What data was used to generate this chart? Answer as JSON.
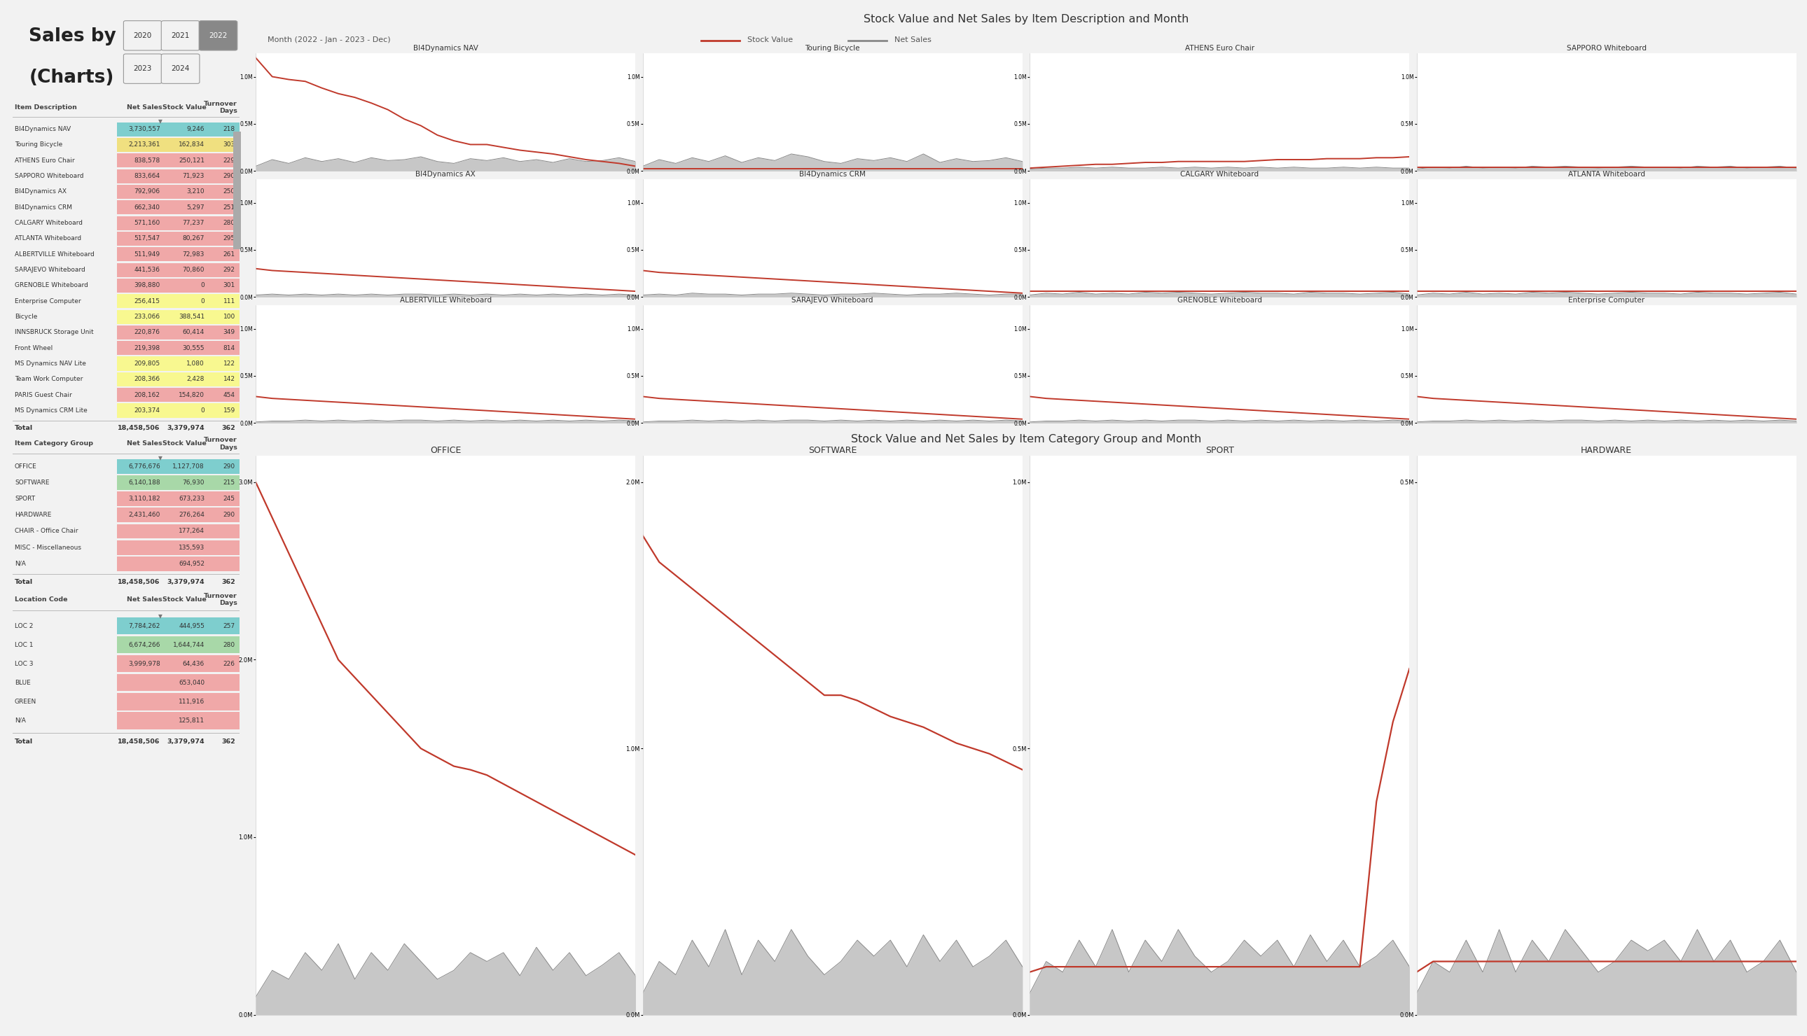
{
  "title_line1": "Sales by Item",
  "title_line2": "(Charts)",
  "year_buttons_row1": [
    "2020",
    "2021",
    "2022"
  ],
  "year_buttons_row2": [
    "2023",
    "2024"
  ],
  "selected_year": "2022",
  "chart_title_top": "Stock Value and Net Sales by Item Description and Month",
  "chart_title_bottom": "Stock Value and Net Sales by Item Category Group and Month",
  "legend_label": "Month (2022 - Jan - 2023 - Dec)",
  "legend_stock": "Stock Value",
  "legend_net": "Net Sales",
  "table1_header": [
    "Item Description",
    "Net Sales",
    "Stock Value",
    "Turnover\nDays"
  ],
  "table1_rows": [
    [
      "BI4Dynamics NAV",
      "3,730,557",
      "9,246",
      "218",
      "teal"
    ],
    [
      "Touring Bicycle",
      "2,213,361",
      "162,834",
      "303",
      "yellow"
    ],
    [
      "ATHENS Euro Chair",
      "838,578",
      "250,121",
      "229",
      "salmon"
    ],
    [
      "SAPPORO Whiteboard",
      "833,664",
      "71,923",
      "290",
      "salmon"
    ],
    [
      "BI4Dynamics AX",
      "792,906",
      "3,210",
      "250",
      "salmon"
    ],
    [
      "BI4Dynamics CRM",
      "662,340",
      "5,297",
      "251",
      "salmon"
    ],
    [
      "CALGARY Whiteboard",
      "571,160",
      "77,237",
      "280",
      "salmon"
    ],
    [
      "ATLANTA Whiteboard",
      "517,547",
      "80,267",
      "295",
      "salmon"
    ],
    [
      "ALBERTVILLE Whiteboard",
      "511,949",
      "72,983",
      "261",
      "salmon"
    ],
    [
      "SARAJEVO Whiteboard",
      "441,536",
      "70,860",
      "292",
      "salmon"
    ],
    [
      "GRENOBLE Whiteboard",
      "398,880",
      "0",
      "301",
      "salmon"
    ],
    [
      "Enterprise Computer",
      "256,415",
      "0",
      "111",
      "lightyellow"
    ],
    [
      "Bicycle",
      "233,066",
      "388,541",
      "100",
      "lightyellow"
    ],
    [
      "INNSBRUCK Storage Unit",
      "220,876",
      "60,414",
      "349",
      "salmon"
    ],
    [
      "Front Wheel",
      "219,398",
      "30,555",
      "814",
      "salmon"
    ],
    [
      "MS Dynamics NAV Lite",
      "209,805",
      "1,080",
      "122",
      "lightyellow"
    ],
    [
      "Team Work Computer",
      "208,366",
      "2,428",
      "142",
      "lightyellow"
    ],
    [
      "PARIS Guest Chair",
      "208,162",
      "154,820",
      "454",
      "salmon"
    ],
    [
      "MS Dynamics CRM Lite",
      "203,374",
      "0",
      "159",
      "lightyellow"
    ]
  ],
  "table1_total": [
    "Total",
    "18,458,506",
    "3,379,974",
    "362"
  ],
  "table2_header": [
    "Item Category Group",
    "Net Sales",
    "Stock Value",
    "Turnover\nDays"
  ],
  "table2_rows": [
    [
      "OFFICE",
      "6,776,676",
      "1,127,708",
      "290",
      "teal"
    ],
    [
      "SOFTWARE",
      "6,140,188",
      "76,930",
      "215",
      "lightgreen"
    ],
    [
      "SPORT",
      "3,110,182",
      "673,233",
      "245",
      "salmon"
    ],
    [
      "HARDWARE",
      "2,431,460",
      "276,264",
      "290",
      "salmon"
    ],
    [
      "CHAIR - Office Chair",
      "",
      "177,264",
      "",
      "salmon"
    ],
    [
      "MISC - Miscellaneous",
      "",
      "135,593",
      "",
      "salmon"
    ],
    [
      "N/A",
      "",
      "694,952",
      "",
      "salmon"
    ]
  ],
  "table2_total": [
    "Total",
    "18,458,506",
    "3,379,974",
    "362"
  ],
  "table3_header": [
    "Location Code",
    "Net Sales",
    "Stock Value",
    "Turnover\nDays"
  ],
  "table3_rows": [
    [
      "LOC 2",
      "7,784,262",
      "444,955",
      "257",
      "teal"
    ],
    [
      "LOC 1",
      "6,674,266",
      "1,644,744",
      "280",
      "lightgreen"
    ],
    [
      "LOC 3",
      "3,999,978",
      "64,436",
      "226",
      "salmon"
    ],
    [
      "BLUE",
      "",
      "653,040",
      "",
      "salmon"
    ],
    [
      "GREEN",
      "",
      "111,916",
      "",
      "salmon"
    ],
    [
      "N/A",
      "",
      "125,811",
      "",
      "salmon"
    ]
  ],
  "table3_total": [
    "Total",
    "18,458,506",
    "3,379,974",
    "362"
  ],
  "item_charts": [
    {
      "title": "BI4Dynamics NAV",
      "ymax": 1.25,
      "stock_vals": [
        1.2,
        1.0,
        0.97,
        0.95,
        0.88,
        0.82,
        0.78,
        0.72,
        0.65,
        0.55,
        0.48,
        0.38,
        0.32,
        0.28,
        0.28,
        0.25,
        0.22,
        0.2,
        0.18,
        0.15,
        0.12,
        0.1,
        0.08,
        0.05
      ],
      "net_vals": [
        0.05,
        0.12,
        0.08,
        0.14,
        0.1,
        0.13,
        0.09,
        0.14,
        0.11,
        0.12,
        0.15,
        0.1,
        0.08,
        0.13,
        0.11,
        0.14,
        0.1,
        0.12,
        0.09,
        0.13,
        0.1,
        0.11,
        0.14,
        0.1
      ],
      "yticks": [
        0.0,
        0.5,
        1.0
      ],
      "ylabels": [
        "0.0M",
        "0.5M",
        "1.0M"
      ]
    },
    {
      "title": "Touring Bicycle",
      "ymax": 1.25,
      "stock_vals": [
        0.02,
        0.02,
        0.02,
        0.02,
        0.02,
        0.02,
        0.02,
        0.02,
        0.02,
        0.02,
        0.02,
        0.02,
        0.02,
        0.02,
        0.02,
        0.02,
        0.02,
        0.02,
        0.02,
        0.02,
        0.02,
        0.02,
        0.02,
        0.02
      ],
      "net_vals": [
        0.05,
        0.12,
        0.08,
        0.14,
        0.1,
        0.16,
        0.09,
        0.14,
        0.11,
        0.18,
        0.15,
        0.1,
        0.08,
        0.13,
        0.11,
        0.14,
        0.1,
        0.18,
        0.09,
        0.13,
        0.1,
        0.11,
        0.14,
        0.1
      ],
      "yticks": [
        0.0,
        0.5,
        1.0
      ],
      "ylabels": [
        "0.0M",
        "0.5M",
        "1.0M"
      ]
    },
    {
      "title": "ATHENS Euro Chair",
      "ymax": 1.25,
      "stock_vals": [
        0.03,
        0.04,
        0.05,
        0.06,
        0.07,
        0.07,
        0.08,
        0.09,
        0.09,
        0.1,
        0.1,
        0.1,
        0.1,
        0.1,
        0.11,
        0.12,
        0.12,
        0.12,
        0.13,
        0.13,
        0.13,
        0.14,
        0.14,
        0.15
      ],
      "net_vals": [
        0.02,
        0.03,
        0.03,
        0.04,
        0.03,
        0.04,
        0.03,
        0.03,
        0.04,
        0.03,
        0.04,
        0.03,
        0.04,
        0.03,
        0.04,
        0.03,
        0.04,
        0.03,
        0.03,
        0.04,
        0.03,
        0.04,
        0.03,
        0.03
      ],
      "yticks": [
        0.0,
        0.5,
        1.0
      ],
      "ylabels": [
        "0.0M",
        "0.5M",
        "1.0M"
      ]
    },
    {
      "title": "SAPPORO Whiteboard",
      "ymax": 1.25,
      "stock_vals": [
        0.04,
        0.04,
        0.04,
        0.04,
        0.04,
        0.04,
        0.04,
        0.04,
        0.04,
        0.04,
        0.04,
        0.04,
        0.04,
        0.04,
        0.04,
        0.04,
        0.04,
        0.04,
        0.04,
        0.04,
        0.04,
        0.04,
        0.04,
        0.04
      ],
      "net_vals": [
        0.02,
        0.04,
        0.03,
        0.05,
        0.03,
        0.04,
        0.03,
        0.05,
        0.04,
        0.05,
        0.04,
        0.03,
        0.04,
        0.05,
        0.04,
        0.04,
        0.03,
        0.05,
        0.04,
        0.05,
        0.03,
        0.04,
        0.05,
        0.03
      ],
      "yticks": [
        0.0,
        0.5,
        1.0
      ],
      "ylabels": [
        "0.0M",
        "0.5M",
        "1.0M"
      ]
    },
    {
      "title": "BI4Dynamics AX",
      "ymax": 1.25,
      "stock_vals": [
        0.3,
        0.28,
        0.27,
        0.26,
        0.25,
        0.24,
        0.23,
        0.22,
        0.21,
        0.2,
        0.19,
        0.18,
        0.17,
        0.16,
        0.15,
        0.14,
        0.13,
        0.12,
        0.11,
        0.1,
        0.09,
        0.08,
        0.07,
        0.06
      ],
      "net_vals": [
        0.02,
        0.03,
        0.02,
        0.03,
        0.02,
        0.03,
        0.02,
        0.03,
        0.02,
        0.03,
        0.03,
        0.02,
        0.03,
        0.02,
        0.03,
        0.02,
        0.03,
        0.02,
        0.03,
        0.02,
        0.03,
        0.02,
        0.03,
        0.02
      ],
      "yticks": [
        0.0,
        0.5,
        1.0
      ],
      "ylabels": [
        "0.0M",
        "0.5M",
        "1.0M"
      ]
    },
    {
      "title": "BI4Dynamics CRM",
      "ymax": 1.25,
      "stock_vals": [
        0.28,
        0.26,
        0.25,
        0.24,
        0.23,
        0.22,
        0.21,
        0.2,
        0.19,
        0.18,
        0.17,
        0.16,
        0.15,
        0.14,
        0.13,
        0.12,
        0.11,
        0.1,
        0.09,
        0.08,
        0.07,
        0.06,
        0.05,
        0.04
      ],
      "net_vals": [
        0.02,
        0.03,
        0.02,
        0.04,
        0.03,
        0.03,
        0.02,
        0.03,
        0.03,
        0.04,
        0.03,
        0.02,
        0.03,
        0.03,
        0.04,
        0.03,
        0.02,
        0.03,
        0.03,
        0.04,
        0.03,
        0.02,
        0.03,
        0.03
      ],
      "yticks": [
        0.0,
        0.5,
        1.0
      ],
      "ylabels": [
        "0.0M",
        "0.5M",
        "1.0M"
      ]
    },
    {
      "title": "CALGARY Whiteboard",
      "ymax": 1.25,
      "stock_vals": [
        0.06,
        0.06,
        0.06,
        0.06,
        0.06,
        0.06,
        0.06,
        0.06,
        0.06,
        0.06,
        0.06,
        0.06,
        0.06,
        0.06,
        0.06,
        0.06,
        0.06,
        0.06,
        0.06,
        0.06,
        0.06,
        0.06,
        0.06,
        0.06
      ],
      "net_vals": [
        0.02,
        0.04,
        0.03,
        0.05,
        0.03,
        0.04,
        0.03,
        0.05,
        0.04,
        0.05,
        0.04,
        0.03,
        0.04,
        0.05,
        0.04,
        0.04,
        0.03,
        0.05,
        0.04,
        0.04,
        0.03,
        0.04,
        0.05,
        0.03
      ],
      "yticks": [
        0.0,
        0.5,
        1.0
      ],
      "ylabels": [
        "0.0M",
        "0.5M",
        "1.0M"
      ]
    },
    {
      "title": "ATLANTA Whiteboard",
      "ymax": 1.25,
      "stock_vals": [
        0.06,
        0.06,
        0.06,
        0.06,
        0.06,
        0.06,
        0.06,
        0.06,
        0.06,
        0.06,
        0.06,
        0.06,
        0.06,
        0.06,
        0.06,
        0.06,
        0.06,
        0.06,
        0.06,
        0.06,
        0.06,
        0.06,
        0.06,
        0.06
      ],
      "net_vals": [
        0.02,
        0.04,
        0.03,
        0.05,
        0.03,
        0.04,
        0.03,
        0.05,
        0.04,
        0.05,
        0.04,
        0.03,
        0.04,
        0.05,
        0.04,
        0.04,
        0.03,
        0.05,
        0.04,
        0.04,
        0.03,
        0.04,
        0.05,
        0.03
      ],
      "yticks": [
        0.0,
        0.5,
        1.0
      ],
      "ylabels": [
        "0.0M",
        "0.5M",
        "1.0M"
      ]
    },
    {
      "title": "ALBERTVILLE Whiteboard",
      "ymax": 1.25,
      "stock_vals": [
        0.28,
        0.26,
        0.25,
        0.24,
        0.23,
        0.22,
        0.21,
        0.2,
        0.19,
        0.18,
        0.17,
        0.16,
        0.15,
        0.14,
        0.13,
        0.12,
        0.11,
        0.1,
        0.09,
        0.08,
        0.07,
        0.06,
        0.05,
        0.04
      ],
      "net_vals": [
        0.01,
        0.02,
        0.02,
        0.03,
        0.02,
        0.03,
        0.02,
        0.03,
        0.02,
        0.03,
        0.03,
        0.02,
        0.03,
        0.02,
        0.03,
        0.02,
        0.03,
        0.02,
        0.03,
        0.02,
        0.03,
        0.02,
        0.03,
        0.02
      ],
      "yticks": [
        0.0,
        0.5,
        1.0
      ],
      "ylabels": [
        "0.0M",
        "0.5M",
        "1.0M"
      ]
    },
    {
      "title": "SARAJEVO Whiteboard",
      "ymax": 1.25,
      "stock_vals": [
        0.28,
        0.26,
        0.25,
        0.24,
        0.23,
        0.22,
        0.21,
        0.2,
        0.19,
        0.18,
        0.17,
        0.16,
        0.15,
        0.14,
        0.13,
        0.12,
        0.11,
        0.1,
        0.09,
        0.08,
        0.07,
        0.06,
        0.05,
        0.04
      ],
      "net_vals": [
        0.01,
        0.02,
        0.02,
        0.03,
        0.02,
        0.03,
        0.02,
        0.03,
        0.02,
        0.03,
        0.03,
        0.02,
        0.03,
        0.02,
        0.03,
        0.02,
        0.03,
        0.02,
        0.03,
        0.02,
        0.03,
        0.02,
        0.03,
        0.02
      ],
      "yticks": [
        0.0,
        0.5,
        1.0
      ],
      "ylabels": [
        "0.0M",
        "0.5M",
        "1.0M"
      ]
    },
    {
      "title": "GRENOBLE Whiteboard",
      "ymax": 1.25,
      "stock_vals": [
        0.28,
        0.26,
        0.25,
        0.24,
        0.23,
        0.22,
        0.21,
        0.2,
        0.19,
        0.18,
        0.17,
        0.16,
        0.15,
        0.14,
        0.13,
        0.12,
        0.11,
        0.1,
        0.09,
        0.08,
        0.07,
        0.06,
        0.05,
        0.04
      ],
      "net_vals": [
        0.01,
        0.02,
        0.02,
        0.03,
        0.02,
        0.03,
        0.02,
        0.03,
        0.02,
        0.03,
        0.03,
        0.02,
        0.03,
        0.02,
        0.03,
        0.02,
        0.03,
        0.02,
        0.03,
        0.02,
        0.03,
        0.02,
        0.03,
        0.02
      ],
      "yticks": [
        0.0,
        0.5,
        1.0
      ],
      "ylabels": [
        "0.0M",
        "0.5M",
        "1.0M"
      ]
    },
    {
      "title": "Enterprise Computer",
      "ymax": 1.25,
      "stock_vals": [
        0.28,
        0.26,
        0.25,
        0.24,
        0.23,
        0.22,
        0.21,
        0.2,
        0.19,
        0.18,
        0.17,
        0.16,
        0.15,
        0.14,
        0.13,
        0.12,
        0.11,
        0.1,
        0.09,
        0.08,
        0.07,
        0.06,
        0.05,
        0.04
      ],
      "net_vals": [
        0.01,
        0.02,
        0.02,
        0.03,
        0.02,
        0.03,
        0.02,
        0.03,
        0.02,
        0.03,
        0.03,
        0.02,
        0.03,
        0.02,
        0.03,
        0.02,
        0.03,
        0.02,
        0.03,
        0.02,
        0.03,
        0.02,
        0.03,
        0.02
      ],
      "yticks": [
        0.0,
        0.5,
        1.0
      ],
      "ylabels": [
        "0.0M",
        "0.5M",
        "1.0M"
      ]
    }
  ],
  "cat_charts": [
    {
      "title": "OFFICE",
      "ymax": 3.15,
      "stock_vals": [
        3.0,
        2.8,
        2.6,
        2.4,
        2.2,
        2.0,
        1.9,
        1.8,
        1.7,
        1.6,
        1.5,
        1.45,
        1.4,
        1.38,
        1.35,
        1.3,
        1.25,
        1.2,
        1.15,
        1.1,
        1.05,
        1.0,
        0.95,
        0.9
      ],
      "net_vals": [
        0.1,
        0.25,
        0.2,
        0.35,
        0.25,
        0.4,
        0.2,
        0.35,
        0.25,
        0.4,
        0.3,
        0.2,
        0.25,
        0.35,
        0.3,
        0.35,
        0.22,
        0.38,
        0.25,
        0.35,
        0.22,
        0.28,
        0.35,
        0.22
      ],
      "yticks": [
        0.0,
        1.0,
        2.0,
        3.0
      ],
      "ylabels": [
        "0.0M",
        "1.0M",
        "2.0M",
        "3.0M"
      ]
    },
    {
      "title": "SOFTWARE",
      "ymax": 2.1,
      "stock_vals": [
        1.8,
        1.7,
        1.65,
        1.6,
        1.55,
        1.5,
        1.45,
        1.4,
        1.35,
        1.3,
        1.25,
        1.2,
        1.2,
        1.18,
        1.15,
        1.12,
        1.1,
        1.08,
        1.05,
        1.02,
        1.0,
        0.98,
        0.95,
        0.92
      ],
      "net_vals": [
        0.08,
        0.2,
        0.15,
        0.28,
        0.18,
        0.32,
        0.15,
        0.28,
        0.2,
        0.32,
        0.22,
        0.15,
        0.2,
        0.28,
        0.22,
        0.28,
        0.18,
        0.3,
        0.2,
        0.28,
        0.18,
        0.22,
        0.28,
        0.18
      ],
      "yticks": [
        0.0,
        1.0,
        2.0
      ],
      "ylabels": [
        "0.0M",
        "1.0M",
        "2.0M"
      ]
    },
    {
      "title": "SPORT",
      "ymax": 1.05,
      "stock_vals": [
        0.08,
        0.09,
        0.09,
        0.09,
        0.09,
        0.09,
        0.09,
        0.09,
        0.09,
        0.09,
        0.09,
        0.09,
        0.09,
        0.09,
        0.09,
        0.09,
        0.09,
        0.09,
        0.09,
        0.09,
        0.09,
        0.4,
        0.55,
        0.65
      ],
      "net_vals": [
        0.04,
        0.1,
        0.08,
        0.14,
        0.09,
        0.16,
        0.08,
        0.14,
        0.1,
        0.16,
        0.11,
        0.08,
        0.1,
        0.14,
        0.11,
        0.14,
        0.09,
        0.15,
        0.1,
        0.14,
        0.09,
        0.11,
        0.14,
        0.09
      ],
      "yticks": [
        0.0,
        0.5,
        1.0
      ],
      "ylabels": [
        "0.0M",
        "0.5M",
        "1.0M"
      ]
    },
    {
      "title": "HARDWARE",
      "ymax": 0.525,
      "stock_vals": [
        0.04,
        0.05,
        0.05,
        0.05,
        0.05,
        0.05,
        0.05,
        0.05,
        0.05,
        0.05,
        0.05,
        0.05,
        0.05,
        0.05,
        0.05,
        0.05,
        0.05,
        0.05,
        0.05,
        0.05,
        0.05,
        0.05,
        0.05,
        0.05
      ],
      "net_vals": [
        0.02,
        0.05,
        0.04,
        0.07,
        0.04,
        0.08,
        0.04,
        0.07,
        0.05,
        0.08,
        0.06,
        0.04,
        0.05,
        0.07,
        0.06,
        0.07,
        0.05,
        0.08,
        0.05,
        0.07,
        0.04,
        0.05,
        0.07,
        0.04
      ],
      "yticks": [
        0.0,
        0.5
      ],
      "ylabels": [
        "0.0M",
        "0.5M"
      ]
    }
  ],
  "colors": {
    "background": "#f2f2f2",
    "panel_bg": "#ffffff",
    "header_bg": "#d0d0d0",
    "chart_bg": "#e8e8e8",
    "stock_line": "#c0392b",
    "net_area": "#aaaaaa",
    "net_line": "#888888",
    "teal": "#7ecece",
    "lightgreen": "#a8d8a8",
    "yellow": "#f0e080",
    "salmon": "#f0a8a8",
    "lightyellow": "#f8f890",
    "title_color": "#222222",
    "table_border": "#cccccc",
    "scrollbar": "#b0b0b0"
  }
}
